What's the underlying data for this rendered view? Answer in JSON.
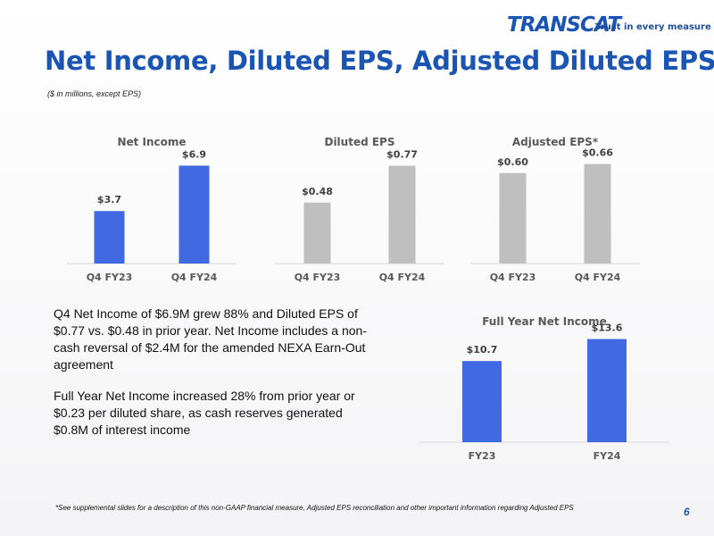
{
  "brand": {
    "logo_text": "TRANSCAT",
    "tagline": "Trust in every measure",
    "color": "#1a55b4"
  },
  "slide": {
    "title": "Net Income, Diluted EPS, Adjusted Diluted EPS*",
    "subtitle": "($ in millions, except EPS)",
    "page_number": "6"
  },
  "chart_data": [
    {
      "type": "bar",
      "title": "Net Income",
      "categories": [
        "Q4 FY23",
        "Q4 FY24"
      ],
      "values": [
        3.7,
        6.9
      ],
      "data_labels": [
        "$3.7",
        "$6.9"
      ],
      "color": "#4169e1",
      "ylim": [
        0,
        8.5
      ],
      "grid": false
    },
    {
      "type": "bar",
      "title": "Diluted EPS",
      "categories": [
        "Q4 FY23",
        "Q4 FY24"
      ],
      "values": [
        0.48,
        0.77
      ],
      "data_labels": [
        "$0.48",
        "$0.77"
      ],
      "color": "#bfbfbf",
      "ylim": [
        0,
        0.95
      ],
      "grid": false
    },
    {
      "type": "bar",
      "title": "Adjusted EPS*",
      "categories": [
        "Q4 FY23",
        "Q4 FY24"
      ],
      "values": [
        0.6,
        0.66
      ],
      "data_labels": [
        "$0.60",
        "$0.66"
      ],
      "color": "#bfbfbf",
      "ylim": [
        0,
        0.8
      ],
      "grid": false
    },
    {
      "type": "bar",
      "title": "Full Year Net Income",
      "categories": [
        "FY23",
        "FY24"
      ],
      "values": [
        10.7,
        13.6
      ],
      "data_labels": [
        "$10.7",
        "$13.6"
      ],
      "color": "#4169e1",
      "ylim": [
        0,
        15.9
      ],
      "grid": false
    }
  ],
  "commentary": {
    "paragraph_1": "Q4 Net Income of $6.9M grew 88% and Diluted EPS of  $0.77 vs. $0.48 in prior year. Net Income includes a non-cash reversal of $2.4M for the amended NEXA Earn-Out agreement",
    "paragraph_2": "Full Year Net Income increased 28% from prior year or $0.23 per diluted share, as cash reserves generated $0.8M of interest income"
  },
  "footnote": "*See supplemental slides for a description of this non-GAAP financial measure, Adjusted EPS reconciliation and other important information regarding Adjusted EPS"
}
